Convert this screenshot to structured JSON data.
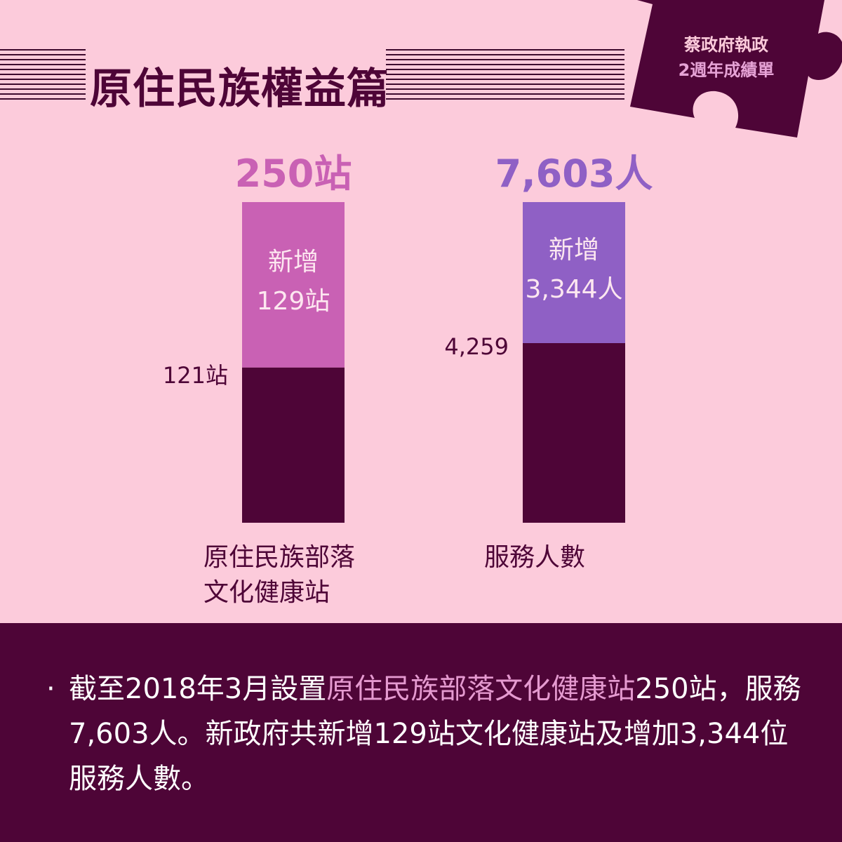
{
  "title": "原住民族權益篇",
  "badge": {
    "line1": "蔡政府執政",
    "line2": "2週年成績單"
  },
  "colors": {
    "background": "#fccbdb",
    "dark": "#4e0537",
    "station_added": "#c961b4",
    "people_added": "#8f60c5",
    "note_highlight": "#e59ad0"
  },
  "chart_data": {
    "type": "bar",
    "stacked": true,
    "categories": [
      "原住民族部落\n文化健康站",
      "服務人數"
    ],
    "category_lines": [
      [
        "原住民族部落",
        "文化健康站"
      ],
      [
        "服務人數"
      ]
    ],
    "totals": [
      250,
      7603
    ],
    "total_labels": [
      "250站",
      "7,603人"
    ],
    "series": [
      {
        "values": [
          121,
          4259
        ],
        "labels": [
          "121站",
          "4,259"
        ]
      },
      {
        "values": [
          129,
          3344
        ],
        "labels": [
          [
            "新增",
            "129站"
          ],
          [
            "新增",
            "3,344人"
          ]
        ]
      }
    ]
  },
  "note": {
    "bullet": "·",
    "text_before": "截至2018年3月設置",
    "text_highlight": "原住民族部落文化健康站",
    "text_after": "250站，服務7,603人。新政府共新增129站文化健康站及增加3,344位服務人數。"
  }
}
